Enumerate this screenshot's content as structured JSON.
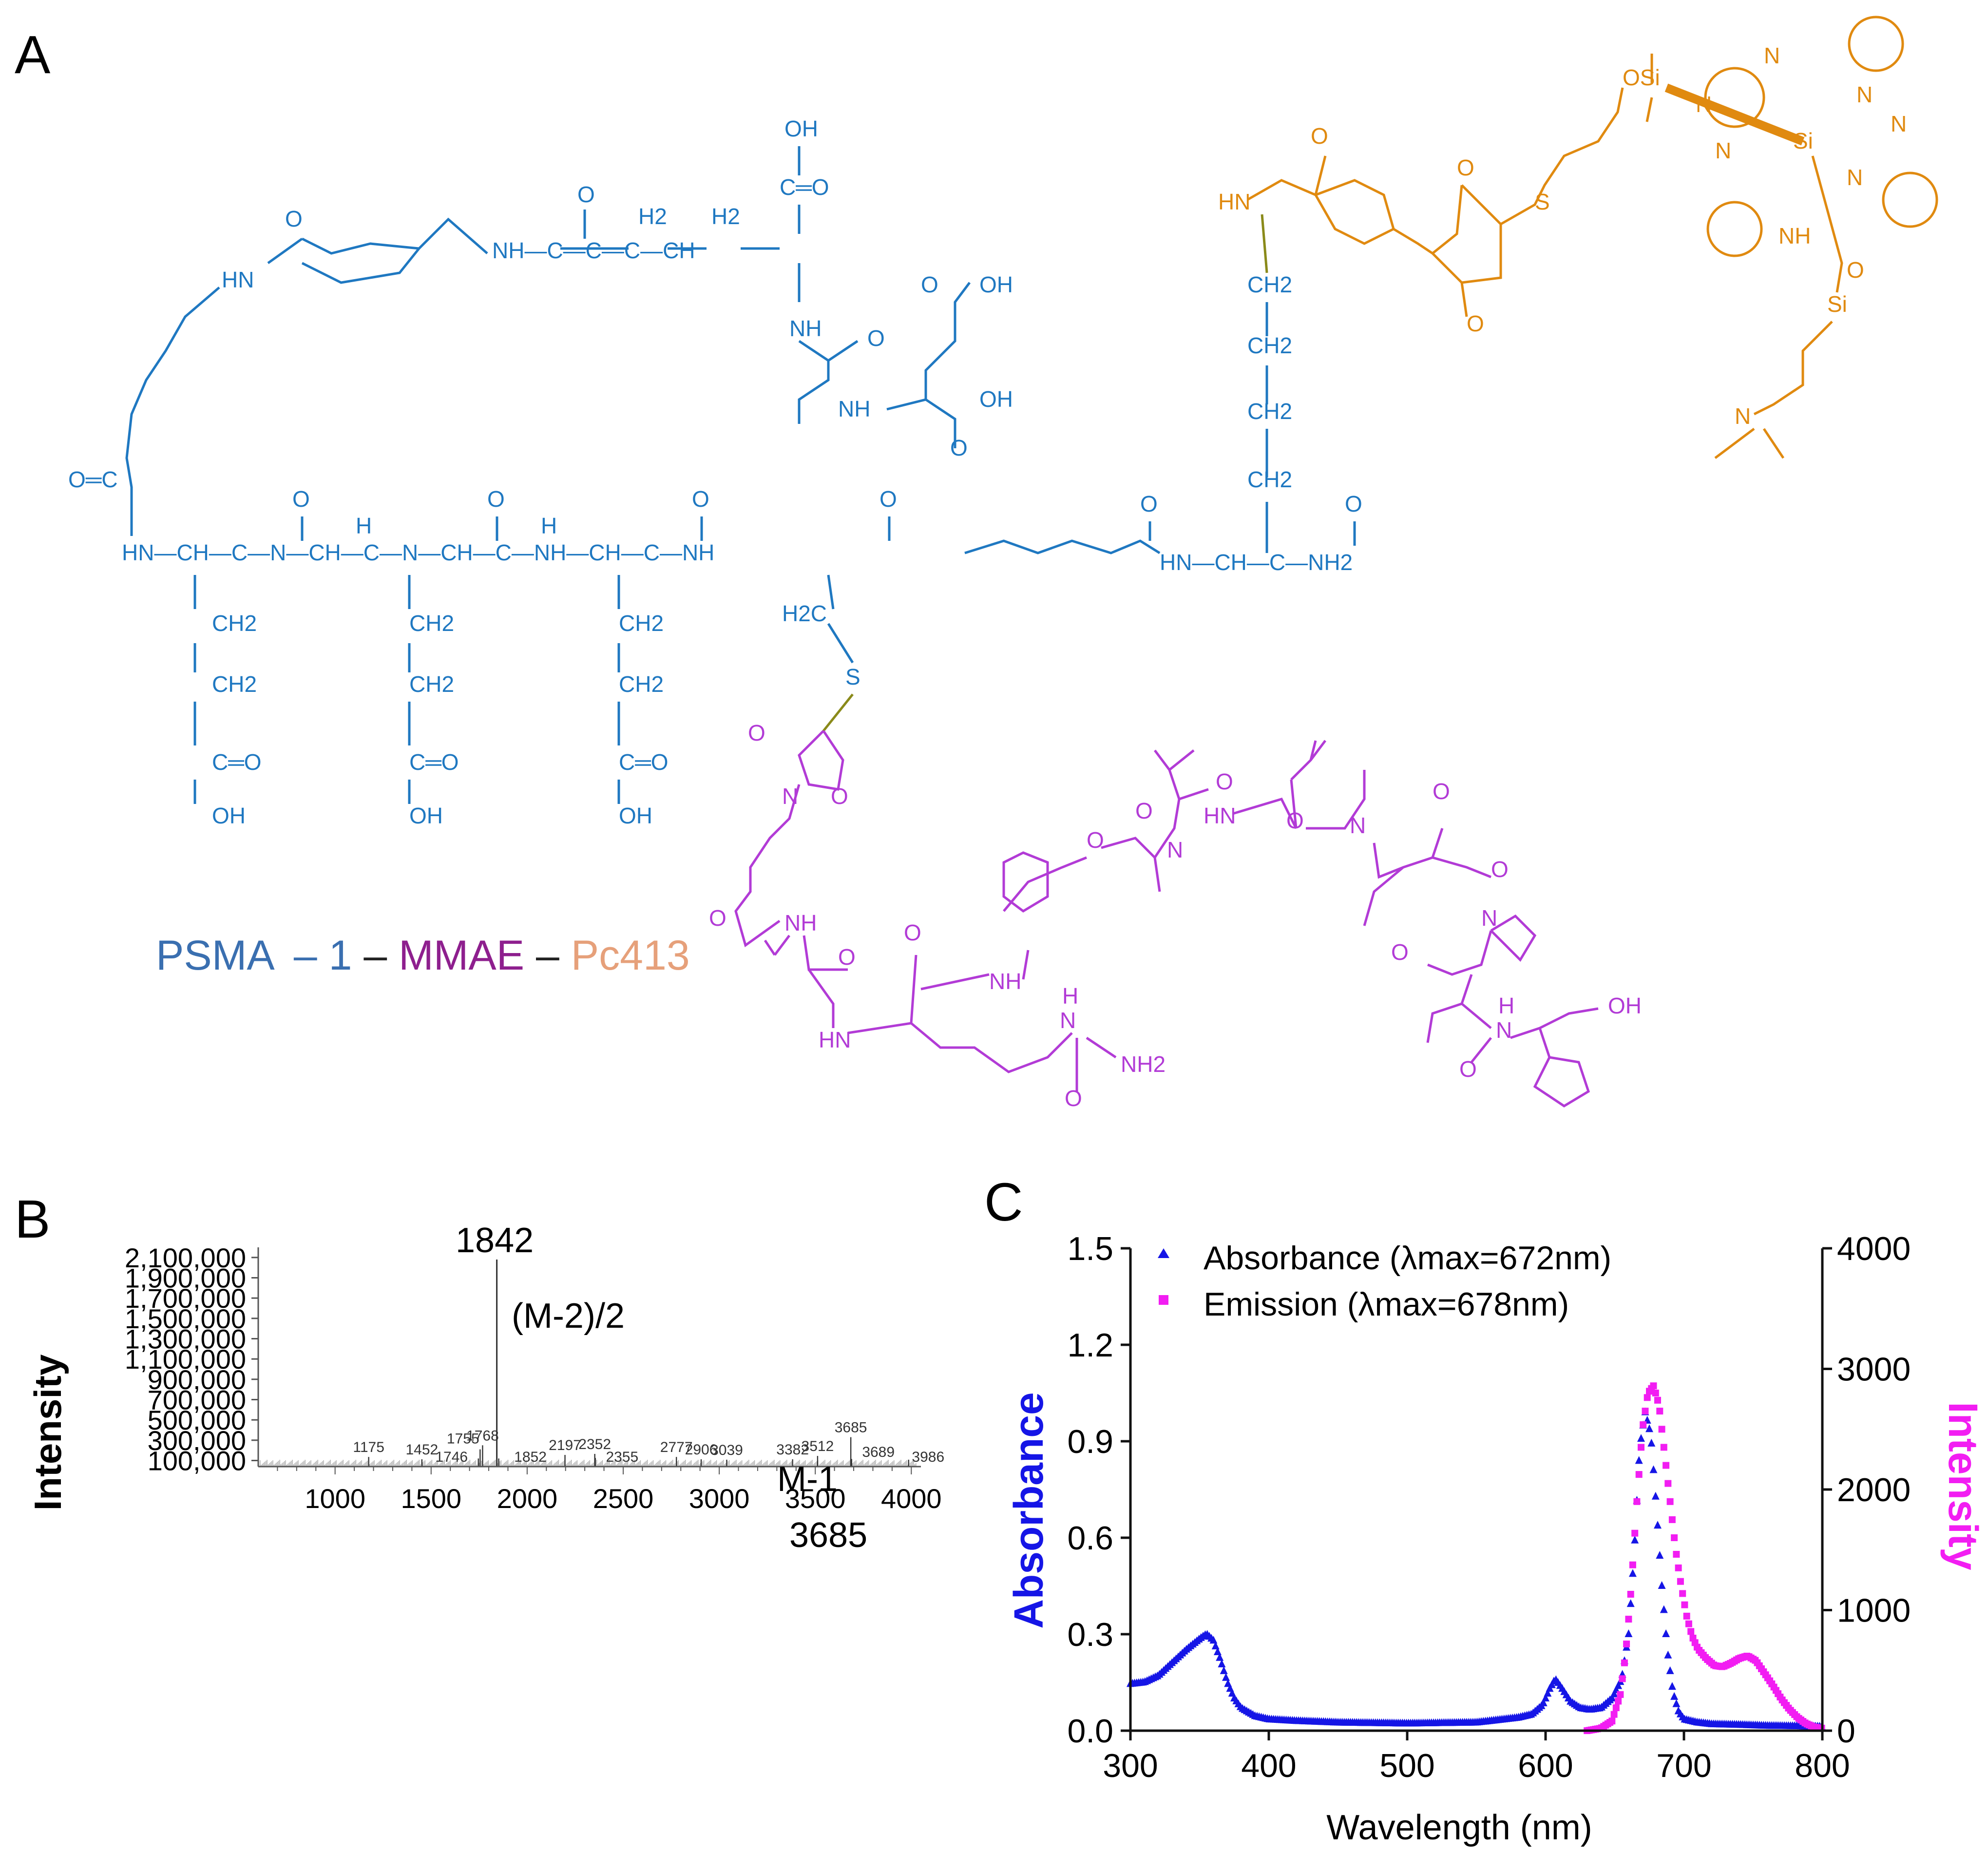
{
  "panels": {
    "a_label": "A",
    "b_label": "B",
    "c_label": "C"
  },
  "colors": {
    "psma": "#1f78c1",
    "linker_bond": "#8a8a1a",
    "mmae": "#b23bd6",
    "pc413": "#e08a10",
    "caption_psma": "#3a6fb0",
    "caption_mmae": "#8e1f8e",
    "caption_pc413": "#e6a07a",
    "absorbance": "#1515e6",
    "emission": "#f21df2",
    "ms_trace": "#333333"
  },
  "structure": {
    "caption": {
      "psma": "PSMA",
      "dash1": "–",
      "one": "1",
      "dash2": "–",
      "mmae": "MMAE",
      "dash3": "–",
      "pc413": "Pc413"
    },
    "psma_labels": {
      "oh_top": "OH",
      "c_eq_o_top": "C═O",
      "o_glu1": "O",
      "h2_1": "H2",
      "h2_2": "H2",
      "nh_c_c_c_ch": "NH—C—C—C—CH",
      "o_cyclo": "O",
      "hn_cyclo": "HN",
      "nh_urea": "NH",
      "o_urea": "O",
      "oh_urea1": "OH",
      "o_urea1": "O",
      "nh_urea2": "NH",
      "oh_urea2": "OH",
      "o_urea2": "O",
      "o_eq_c": "O═C",
      "backbone": "HN—CH—C—N—CH—C—N—CH—C—NH—CH—C—NH",
      "backbone_o1": "O",
      "backbone_h1": "H",
      "backbone_o2": "O",
      "backbone_h2": "H",
      "backbone_o3": "O",
      "backbone_o4": "O",
      "lys_tail": "HN—CH—C—NH2",
      "lys_o1": "O",
      "lys_o2": "O",
      "ch2": "CH2",
      "c_eq_o": "C═O",
      "oh": "OH",
      "h2c": "H2C",
      "s": "S",
      "lys_ch2": "CH2"
    },
    "pc_labels": {
      "hn": "HN",
      "o1": "O",
      "o_succ1": "O",
      "o_succ2": "O",
      "s": "S",
      "osi": "OSi",
      "n_labels": "N",
      "si": "Si",
      "nh": "NH",
      "o_si": "O",
      "si2": "Si",
      "n_amine": "N"
    },
    "mmae_labels": {
      "o": "O",
      "n": "N",
      "hn": "HN",
      "nh": "NH",
      "h": "H",
      "nh2": "NH2",
      "oh": "OH"
    }
  },
  "chart_data": [
    {
      "type": "bar",
      "panel": "B",
      "ylabel": "Intensity",
      "xlabel": "",
      "xlim": [
        600,
        4050
      ],
      "ylim": [
        40000,
        2200000
      ],
      "xticks": [
        "1000",
        "1500",
        "2000",
        "2500",
        "3000",
        "3500",
        "4000"
      ],
      "yticks": [
        "100,000",
        "300,000",
        "500,000",
        "700,000",
        "900,000",
        "1,100,000",
        "1,300,000",
        "1,500,000",
        "1,700,000",
        "1,900,000",
        "2,100,000"
      ],
      "x": [
        1175,
        1452,
        1746,
        1755,
        1768,
        1842,
        1852,
        2197,
        2352,
        2355,
        2777,
        2906,
        3039,
        3382,
        3512,
        3685,
        3689,
        3986
      ],
      "values": [
        135000,
        112000,
        120000,
        210000,
        250000,
        2080000,
        120000,
        155000,
        165000,
        125000,
        135000,
        112000,
        108000,
        112000,
        145000,
        330000,
        115000,
        108000
      ],
      "peak_labels": [
        "1175",
        "1452",
        "1746",
        "1755",
        "1768",
        "1842",
        "1852",
        "2197",
        "2352",
        "2355",
        "2777",
        "2906",
        "3039",
        "3382",
        "3512",
        "3685",
        "3689",
        "3986"
      ],
      "annotations": {
        "main_peak": "1842",
        "main_peak_ion": "(M-2)/2",
        "ion": "M-1",
        "ion_mass": "3685"
      }
    },
    {
      "type": "scatter",
      "panel": "C",
      "xlabel": "Wavelength (nm)",
      "ylabel_left": "Absorbance",
      "ylabel_right": "Intensity",
      "xlim": [
        300,
        800
      ],
      "ylim_left": [
        0,
        1.5
      ],
      "ylim_right": [
        0,
        4000
      ],
      "xticks": [
        "300",
        "400",
        "500",
        "600",
        "700",
        "800"
      ],
      "yticks_left": [
        "0.0",
        "0.3",
        "0.6",
        "0.9",
        "1.2",
        "1.5"
      ],
      "yticks_right": [
        "0",
        "1000",
        "2000",
        "3000",
        "4000"
      ],
      "legend_position": "top-left",
      "series": [
        {
          "name": "Absorbance (λmax=672nm)",
          "axis": "left",
          "marker": "triangle",
          "x": [
            300,
            310,
            320,
            330,
            340,
            350,
            355,
            360,
            365,
            370,
            375,
            380,
            390,
            400,
            420,
            450,
            500,
            550,
            580,
            590,
            598,
            603,
            607,
            612,
            618,
            625,
            632,
            640,
            648,
            655,
            660,
            664,
            668,
            672,
            676,
            680,
            684,
            688,
            692,
            696,
            700,
            710,
            720,
            740,
            760,
            780,
            800
          ],
          "values": [
            0.145,
            0.15,
            0.17,
            0.21,
            0.25,
            0.285,
            0.3,
            0.28,
            0.22,
            0.15,
            0.1,
            0.07,
            0.045,
            0.035,
            0.03,
            0.025,
            0.022,
            0.025,
            0.04,
            0.05,
            0.08,
            0.13,
            0.16,
            0.13,
            0.09,
            0.07,
            0.065,
            0.07,
            0.1,
            0.16,
            0.3,
            0.55,
            0.88,
            0.99,
            0.92,
            0.7,
            0.45,
            0.25,
            0.12,
            0.06,
            0.035,
            0.025,
            0.02,
            0.018,
            0.015,
            0.014,
            0.012
          ]
        },
        {
          "name": "Emission (λmax=678nm)",
          "axis": "right",
          "marker": "square",
          "x": [
            630,
            640,
            648,
            654,
            658,
            662,
            666,
            670,
            674,
            678,
            682,
            686,
            690,
            694,
            698,
            702,
            706,
            710,
            716,
            722,
            728,
            734,
            740,
            746,
            752,
            758,
            764,
            770,
            776,
            782,
            788,
            794,
            800
          ],
          "values": [
            0,
            20,
            80,
            300,
            650,
            1200,
            1900,
            2500,
            2800,
            2860,
            2700,
            2300,
            1900,
            1500,
            1200,
            950,
            780,
            680,
            600,
            540,
            530,
            560,
            600,
            620,
            580,
            480,
            380,
            270,
            180,
            110,
            60,
            30,
            20
          ]
        }
      ]
    }
  ]
}
